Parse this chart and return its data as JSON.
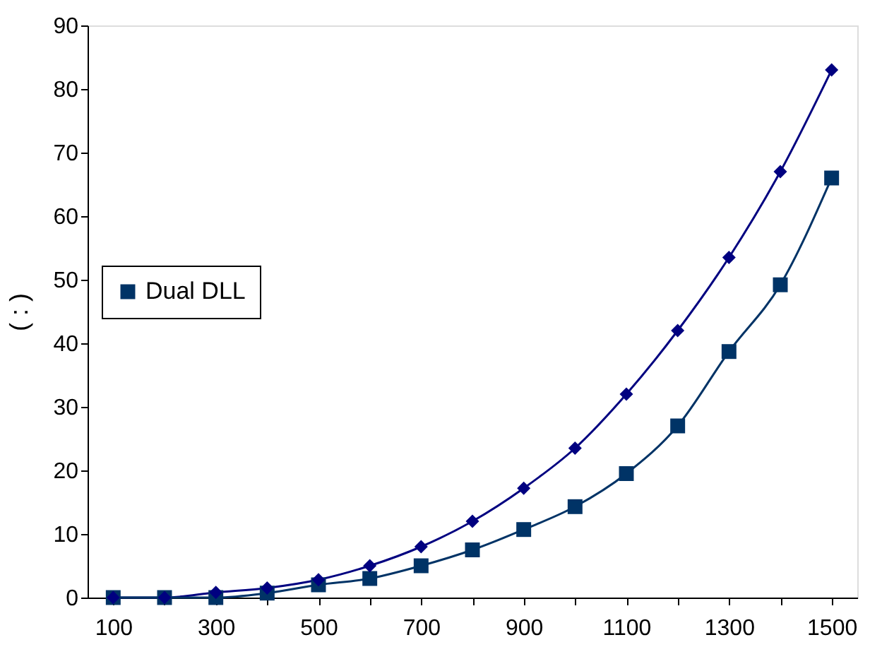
{
  "chart_data": {
    "type": "line",
    "ylabel": "( : )",
    "categories": [
      "100",
      null,
      "300",
      null,
      "500",
      null,
      "700",
      null,
      "900",
      null,
      "1100",
      null,
      "1300",
      null,
      "1500"
    ],
    "ylim": [
      0,
      90
    ],
    "yticks": [
      0,
      10,
      20,
      30,
      40,
      50,
      60,
      70,
      80,
      90
    ],
    "legend": "left",
    "grid": false,
    "series": [
      {
        "color": "#000080",
        "marker": "diamond",
        "values": [
          0,
          0,
          0.8,
          1.5,
          2.8,
          5,
          8,
          12,
          17.2,
          23.5,
          32,
          42,
          53.5,
          67,
          83
        ]
      },
      {
        "name": "Dual DLL",
        "color": "#003366",
        "marker": "square",
        "values": [
          0,
          0,
          0,
          0.7,
          2,
          3,
          5,
          7.5,
          10.7,
          14.3,
          19.5,
          27,
          38.7,
          49.2,
          66
        ]
      }
    ]
  }
}
